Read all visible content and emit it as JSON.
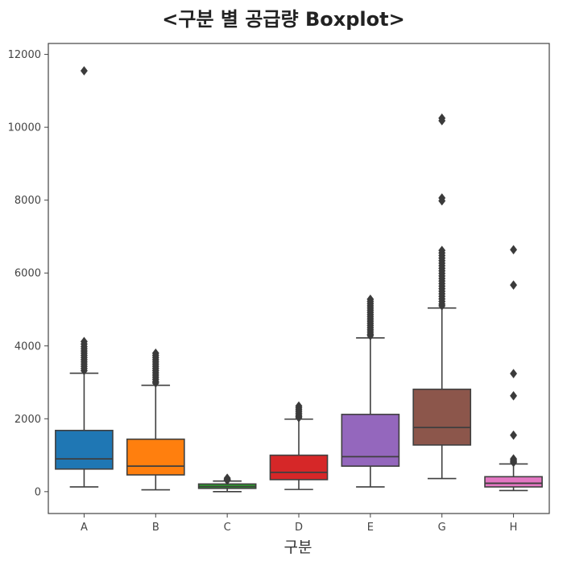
{
  "chart_data": {
    "type": "boxplot",
    "title": "<구분 별 공급량 Boxplot>",
    "xlabel": "구분",
    "ylabel": "",
    "ylim": [
      -600,
      12300
    ],
    "yticks": [
      0,
      2000,
      4000,
      6000,
      8000,
      10000,
      12000
    ],
    "ytick_labels": [
      "0",
      "2000",
      "4000",
      "6000",
      "8000",
      "10000",
      "12000"
    ],
    "grid": false,
    "categories": [
      "A",
      "B",
      "C",
      "D",
      "E",
      "G",
      "H"
    ],
    "boxes": [
      {
        "label": "A",
        "color": "#1f77b4",
        "whislo": 130,
        "q1": 620,
        "med": 900,
        "q3": 1680,
        "whishi": 3250,
        "fliers": [
          11550,
          4120,
          4050,
          3980,
          3920,
          3860,
          3800,
          3740,
          3680,
          3620,
          3560,
          3500,
          3440,
          3380,
          3320
        ]
      },
      {
        "label": "B",
        "color": "#ff7f0e",
        "whislo": 50,
        "q1": 460,
        "med": 700,
        "q3": 1440,
        "whishi": 2920,
        "fliers": [
          3800,
          3740,
          3680,
          3620,
          3560,
          3500,
          3440,
          3380,
          3320,
          3260,
          3200,
          3140,
          3080,
          3020,
          2980
        ]
      },
      {
        "label": "C",
        "color": "#2ca02c",
        "whislo": 0,
        "q1": 90,
        "med": 140,
        "q3": 210,
        "whishi": 290,
        "fliers": [
          370,
          340,
          320,
          310
        ]
      },
      {
        "label": "D",
        "color": "#d62728",
        "whislo": 60,
        "q1": 330,
        "med": 530,
        "q3": 1000,
        "whishi": 1990,
        "fliers": [
          2350,
          2300,
          2250,
          2200,
          2150,
          2100,
          2060,
          2030
        ]
      },
      {
        "label": "E",
        "color": "#9467bd",
        "whislo": 130,
        "q1": 700,
        "med": 960,
        "q3": 2120,
        "whishi": 4220,
        "fliers": [
          5280,
          5220,
          5160,
          5100,
          5040,
          4980,
          4920,
          4860,
          4800,
          4740,
          4680,
          4620,
          4560,
          4500,
          4440,
          4380,
          4320,
          4280
        ]
      },
      {
        "label": "G",
        "color": "#8c564b",
        "whislo": 360,
        "q1": 1280,
        "med": 1760,
        "q3": 2810,
        "whishi": 5040,
        "fliers": [
          10250,
          10180,
          8060,
          7980,
          6620,
          6550,
          6480,
          6410,
          6340,
          6270,
          6200,
          6130,
          6060,
          5990,
          5920,
          5850,
          5780,
          5710,
          5640,
          5570,
          5500,
          5430,
          5360,
          5290,
          5220,
          5150,
          5100
        ]
      },
      {
        "label": "H",
        "color": "#e377c2",
        "whislo": 30,
        "q1": 130,
        "med": 230,
        "q3": 410,
        "whishi": 760,
        "fliers": [
          6640,
          5670,
          3240,
          2630,
          1550,
          900,
          860,
          830,
          800
        ]
      }
    ]
  }
}
